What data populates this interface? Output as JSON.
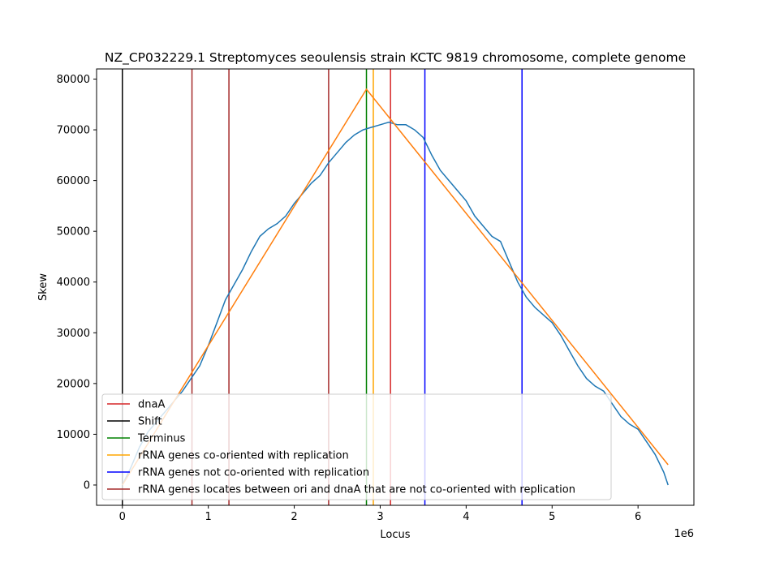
{
  "chart_data": {
    "type": "line",
    "title": "NZ_CP032229.1 Streptomyces seoulensis strain KCTC 9819 chromosome, complete genome",
    "xlabel": "Locus",
    "ylabel": "Skew",
    "x_offset_label": "1e6",
    "xlim": [
      -300000,
      6650000
    ],
    "ylim": [
      -4000,
      82000
    ],
    "x_ticks": [
      0,
      1000000,
      2000000,
      3000000,
      4000000,
      5000000,
      6000000
    ],
    "x_tick_labels": [
      "0",
      "1",
      "2",
      "3",
      "4",
      "5",
      "6"
    ],
    "y_ticks": [
      0,
      10000,
      20000,
      30000,
      40000,
      50000,
      60000,
      70000,
      80000
    ],
    "y_tick_labels": [
      "0",
      "10000",
      "20000",
      "30000",
      "40000",
      "50000",
      "60000",
      "70000",
      "80000"
    ],
    "grid": false,
    "legend_position": "lower-left",
    "legend": [
      {
        "label": "dnaA",
        "color": "#d62728"
      },
      {
        "label": "Shift",
        "color": "#000000"
      },
      {
        "label": "Terminus",
        "color": "#008000"
      },
      {
        "label": "rRNA genes co-oriented with replication",
        "color": "#ffa500"
      },
      {
        "label": "rRNA genes not co-oriented with replication",
        "color": "#0000ff"
      },
      {
        "label": "rRNA genes locates between ori and dnaA that are not co-oriented with replication",
        "color": "#a52a2a"
      }
    ],
    "skew_series": {
      "color": "#1f77b4",
      "x": [
        0,
        100000,
        200000,
        300000,
        400000,
        500000,
        600000,
        700000,
        800000,
        900000,
        1000000,
        1100000,
        1200000,
        1300000,
        1400000,
        1500000,
        1600000,
        1700000,
        1800000,
        1900000,
        2000000,
        2100000,
        2200000,
        2300000,
        2400000,
        2500000,
        2600000,
        2700000,
        2800000,
        2900000,
        3000000,
        3100000,
        3200000,
        3300000,
        3400000,
        3500000,
        3600000,
        3700000,
        3800000,
        3900000,
        4000000,
        4100000,
        4200000,
        4300000,
        4400000,
        4500000,
        4600000,
        4700000,
        4800000,
        4900000,
        5000000,
        5100000,
        5200000,
        5300000,
        5400000,
        5500000,
        5600000,
        5700000,
        5800000,
        5900000,
        6000000,
        6100000,
        6200000,
        6300000,
        6350000
      ],
      "y": [
        0,
        3500,
        7500,
        10500,
        12500,
        14500,
        16500,
        18500,
        21000,
        23500,
        27500,
        32000,
        36500,
        39500,
        42500,
        46000,
        49000,
        50500,
        51500,
        53000,
        55500,
        57500,
        59500,
        61000,
        63500,
        65500,
        67500,
        69000,
        70000,
        70500,
        71000,
        71500,
        71000,
        71000,
        70000,
        68500,
        65000,
        62000,
        60000,
        58000,
        56000,
        53000,
        51000,
        49000,
        48000,
        44000,
        40000,
        37000,
        35000,
        33500,
        32000,
        29500,
        26500,
        23500,
        21000,
        19500,
        18500,
        16000,
        13500,
        12000,
        11000,
        8500,
        6000,
        2500,
        0
      ]
    },
    "fit_series": {
      "color": "#ff7f0e",
      "x": [
        0,
        2840000,
        6350000
      ],
      "y": [
        0,
        78000,
        4000
      ]
    },
    "vertical_lines": [
      {
        "x": 0,
        "color": "#000000"
      },
      {
        "x": 810000,
        "color": "#a52a2a"
      },
      {
        "x": 1240000,
        "color": "#a52a2a"
      },
      {
        "x": 2400000,
        "color": "#a52a2a"
      },
      {
        "x": 2840000,
        "color": "#008000"
      },
      {
        "x": 2920000,
        "color": "#ffa500"
      },
      {
        "x": 3120000,
        "color": "#d62728"
      },
      {
        "x": 3520000,
        "color": "#0000ff"
      },
      {
        "x": 4650000,
        "color": "#0000ff"
      }
    ]
  }
}
